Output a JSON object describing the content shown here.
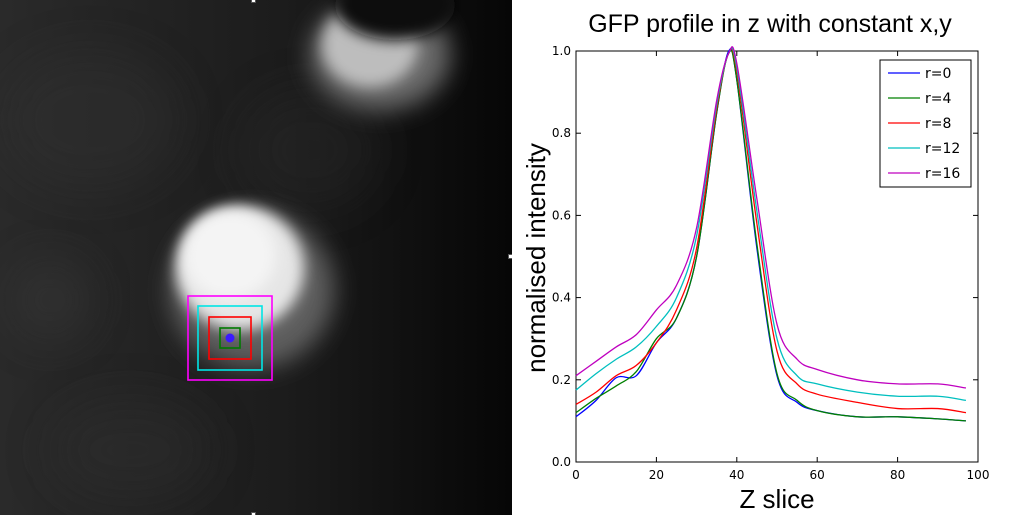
{
  "figure": {
    "image_panel": {
      "description_name": "GFP microscopy slice",
      "roi_center_color": "#3a1aff",
      "roi_boxes": [
        {
          "label": "r=4",
          "color": "#007a00"
        },
        {
          "label": "r=8",
          "color": "#ff0000"
        },
        {
          "label": "r=12",
          "color": "#00e5e5"
        },
        {
          "label": "r=16",
          "color": "#ff00ff"
        }
      ]
    }
  },
  "chart_data": {
    "type": "line",
    "title": "GFP profile in z with constant x,y",
    "xlabel": "Z slice",
    "ylabel": "normalised intensity",
    "xlim": [
      0,
      100
    ],
    "ylim": [
      0,
      1.0
    ],
    "x_ticks": [
      "0",
      "20",
      "40",
      "60",
      "80",
      "100"
    ],
    "y_ticks": [
      "0.0",
      "0.2",
      "0.4",
      "0.6",
      "0.8",
      "1.0"
    ],
    "legend_position": "top-right",
    "x": [
      0,
      5,
      10,
      15,
      20,
      25,
      30,
      35,
      38,
      40,
      45,
      50,
      55,
      60,
      70,
      80,
      90,
      97
    ],
    "series": [
      {
        "name": "r=0",
        "color": "#0000ff",
        "values": [
          0.11,
          0.15,
          0.205,
          0.21,
          0.29,
          0.35,
          0.5,
          0.85,
          1.0,
          0.93,
          0.52,
          0.21,
          0.145,
          0.125,
          0.11,
          0.11,
          0.105,
          0.1
        ]
      },
      {
        "name": "r=4",
        "color": "#008000",
        "values": [
          0.12,
          0.155,
          0.185,
          0.22,
          0.3,
          0.35,
          0.5,
          0.85,
          0.995,
          0.93,
          0.53,
          0.215,
          0.15,
          0.125,
          0.11,
          0.11,
          0.105,
          0.1
        ]
      },
      {
        "name": "r=8",
        "color": "#ff0000",
        "values": [
          0.14,
          0.17,
          0.21,
          0.235,
          0.29,
          0.37,
          0.52,
          0.86,
          0.995,
          0.95,
          0.58,
          0.27,
          0.19,
          0.165,
          0.145,
          0.13,
          0.13,
          0.12
        ]
      },
      {
        "name": "r=12",
        "color": "#00bfbf",
        "values": [
          0.175,
          0.215,
          0.25,
          0.28,
          0.33,
          0.4,
          0.55,
          0.87,
          0.995,
          0.96,
          0.61,
          0.3,
          0.21,
          0.19,
          0.17,
          0.16,
          0.16,
          0.15
        ]
      },
      {
        "name": "r=16",
        "color": "#bf00bf",
        "values": [
          0.21,
          0.245,
          0.28,
          0.31,
          0.37,
          0.43,
          0.57,
          0.88,
          0.995,
          0.97,
          0.64,
          0.335,
          0.25,
          0.225,
          0.2,
          0.19,
          0.19,
          0.18
        ]
      }
    ]
  }
}
